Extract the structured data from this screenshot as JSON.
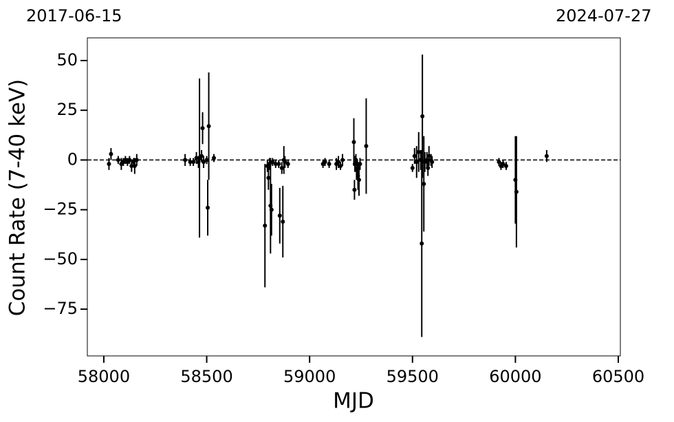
{
  "chart_data": {
    "type": "errorbar-scatter",
    "top_labels": [
      "2017-06-15",
      "2024-07-27"
    ],
    "xlabel": "MJD",
    "ylabel": "Count Rate (7-40 keV)",
    "xlim": [
      57920,
      60510
    ],
    "ylim": [
      -98.5,
      61.4
    ],
    "xticks": [
      58000,
      58500,
      59000,
      59500,
      60000,
      60500
    ],
    "yticks": [
      {
        "value": -75,
        "label": "−75"
      },
      {
        "value": -50,
        "label": "−50"
      },
      {
        "value": -25,
        "label": "−25"
      },
      0,
      25,
      50
    ],
    "hline": 0,
    "color": "#000000",
    "x": [
      58025,
      58035,
      58070,
      58085,
      58095,
      58105,
      58115,
      58125,
      58135,
      58145,
      58150,
      58160,
      58395,
      58420,
      58435,
      58450,
      58460,
      58465,
      58475,
      58480,
      58485,
      58500,
      58505,
      58510,
      58535,
      58783,
      58795,
      58800,
      58805,
      58810,
      58815,
      58820,
      58835,
      58850,
      58855,
      58865,
      58870,
      58875,
      58880,
      58895,
      59065,
      59075,
      59095,
      59130,
      59140,
      59150,
      59160,
      59215,
      59218,
      59220,
      59225,
      59228,
      59232,
      59235,
      59240,
      59245,
      59275,
      59500,
      59510,
      59520,
      59530,
      59540,
      59545,
      59548,
      59555,
      59560,
      59570,
      59575,
      59580,
      59590,
      59595,
      59920,
      59930,
      59940,
      59955,
      60000,
      60005,
      60152
    ],
    "values": [
      -2,
      3,
      0,
      -2,
      -1,
      0,
      -1,
      0,
      -3,
      -1,
      -3,
      0,
      0,
      -1,
      -1,
      1,
      -1,
      1,
      2,
      16,
      -1,
      0,
      -24,
      17,
      1,
      -33,
      -3,
      -9,
      -2,
      -23,
      -25,
      -1,
      -2,
      -2,
      -28,
      -4,
      -31,
      0,
      -1,
      -2,
      -2,
      -1,
      -2,
      -2,
      -1,
      -3,
      0,
      9,
      -15,
      -2,
      0,
      -5,
      -4,
      -8,
      -10,
      -2,
      7,
      -4,
      2,
      -1,
      4,
      0,
      -42,
      22,
      -12,
      -1,
      0,
      -4,
      2,
      0,
      -1,
      -1,
      -3,
      -2,
      -3,
      -10,
      -16,
      2
    ],
    "errors": [
      3,
      3,
      2,
      3,
      2,
      2,
      2,
      2,
      3,
      2,
      4,
      3,
      3,
      2,
      2,
      3,
      3,
      40,
      3,
      8,
      3,
      2,
      14,
      27,
      2,
      31,
      3,
      6,
      3,
      24,
      13,
      2,
      2,
      2,
      14,
      3,
      18,
      7,
      3,
      2,
      2,
      2,
      2,
      3,
      3,
      2,
      3,
      12,
      5,
      4,
      3,
      5,
      4,
      7,
      8,
      3,
      24,
      2,
      4,
      8,
      10,
      5,
      47,
      31,
      24,
      5,
      4,
      4,
      5,
      3,
      3,
      2,
      2,
      2,
      2,
      22,
      28,
      3
    ]
  }
}
